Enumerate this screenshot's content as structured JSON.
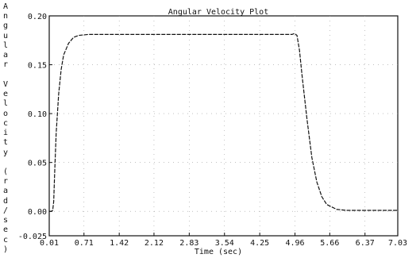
{
  "window": {
    "title": "Angular Velocity Plot"
  },
  "chart_data": {
    "type": "line",
    "title": "Angular Velocity Plot",
    "xlabel": "Time (sec)",
    "ylabel": "Angular Velocity (rad/sec)",
    "xlim": [
      0.01,
      7.03
    ],
    "ylim": [
      -0.025,
      0.2
    ],
    "x_ticks": [
      "0.01",
      "0.71",
      "1.42",
      "2.12",
      "2.83",
      "3.54",
      "4.25",
      "4.96",
      "5.66",
      "6.37",
      "7.03"
    ],
    "y_ticks": [
      "-0.025",
      "0.00",
      "0.05",
      "0.10",
      "0.15",
      "0.20"
    ],
    "grid": true,
    "series": [
      {
        "color": "#111111",
        "x": [
          0.01,
          0.05,
          0.08,
          0.1,
          0.12,
          0.15,
          0.2,
          0.25,
          0.3,
          0.4,
          0.5,
          0.6,
          0.8,
          1.0,
          1.5,
          2.0,
          2.5,
          3.0,
          3.5,
          4.0,
          4.5,
          4.8,
          4.9,
          4.95,
          5.0,
          5.05,
          5.1,
          5.2,
          5.3,
          5.4,
          5.5,
          5.6,
          5.8,
          6.0,
          6.5,
          7.03
        ],
        "y": [
          0.0,
          0.0,
          0.001,
          0.01,
          0.04,
          0.08,
          0.12,
          0.145,
          0.16,
          0.172,
          0.178,
          0.18,
          0.181,
          0.181,
          0.181,
          0.181,
          0.181,
          0.181,
          0.181,
          0.181,
          0.181,
          0.181,
          0.181,
          0.182,
          0.18,
          0.165,
          0.14,
          0.095,
          0.055,
          0.03,
          0.015,
          0.007,
          0.002,
          0.001,
          0.001,
          0.001
        ]
      }
    ]
  }
}
